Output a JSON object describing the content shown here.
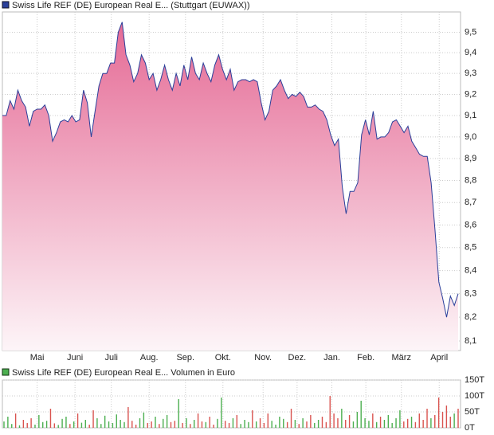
{
  "chart_data": [
    {
      "type": "area",
      "title": "Swiss Life REF (DE) European Real E... (Stuttgart (EUWAX))",
      "color": "#2a3f9a",
      "fill": "#e8739b",
      "log": true,
      "grid": true,
      "values": [
        9.1,
        9.1,
        9.17,
        9.13,
        9.22,
        9.17,
        9.14,
        9.05,
        9.12,
        9.13,
        9.13,
        9.15,
        9.1,
        8.98,
        9.02,
        9.07,
        9.08,
        9.07,
        9.1,
        9.07,
        9.08,
        9.22,
        9.16,
        9.0,
        9.12,
        9.24,
        9.3,
        9.3,
        9.35,
        9.35,
        9.5,
        9.55,
        9.39,
        9.34,
        9.26,
        9.3,
        9.39,
        9.35,
        9.27,
        9.3,
        9.22,
        9.27,
        9.34,
        9.27,
        9.22,
        9.3,
        9.24,
        9.34,
        9.27,
        9.38,
        9.3,
        9.27,
        9.35,
        9.3,
        9.26,
        9.34,
        9.39,
        9.32,
        9.27,
        9.32,
        9.22,
        9.26,
        9.27,
        9.27,
        9.26,
        9.27,
        9.26,
        9.16,
        9.08,
        9.12,
        9.22,
        9.24,
        9.27,
        9.22,
        9.18,
        9.2,
        9.19,
        9.21,
        9.19,
        9.14,
        9.14,
        9.15,
        9.13,
        9.12,
        9.08,
        9.01,
        8.96,
        8.99,
        8.77,
        8.65,
        8.75,
        8.75,
        8.79,
        9.01,
        9.08,
        9.01,
        9.12,
        8.99,
        9.0,
        9.0,
        9.02,
        9.07,
        9.08,
        9.05,
        9.02,
        9.05,
        8.98,
        8.95,
        8.92,
        8.91,
        8.91,
        8.79,
        8.58,
        8.35,
        8.28,
        8.2,
        8.29,
        8.25,
        8.3
      ],
      "ylim": [
        8.06,
        9.6
      ],
      "yticks": [
        {
          "value": 8.1,
          "label": "8,1"
        },
        {
          "value": 8.2,
          "label": "8,2"
        },
        {
          "value": 8.3,
          "label": "8,3"
        },
        {
          "value": 8.4,
          "label": "8,4"
        },
        {
          "value": 8.5,
          "label": "8,5"
        },
        {
          "value": 8.6,
          "label": "8,6"
        },
        {
          "value": 8.7,
          "label": "8,7"
        },
        {
          "value": 8.8,
          "label": "8,8"
        },
        {
          "value": 8.9,
          "label": "8,9"
        },
        {
          "value": 9.0,
          "label": "9,0"
        },
        {
          "value": 9.1,
          "label": "9,1"
        },
        {
          "value": 9.2,
          "label": "9,2"
        },
        {
          "value": 9.3,
          "label": "9,3"
        },
        {
          "value": 9.4,
          "label": "9,4"
        },
        {
          "value": 9.5,
          "label": "9,5"
        }
      ],
      "xticks": [
        {
          "value": 9,
          "label": "Mai"
        },
        {
          "value": 18.8,
          "label": "Juni"
        },
        {
          "value": 28.2,
          "label": "Juli"
        },
        {
          "value": 38,
          "label": "Aug."
        },
        {
          "value": 47.4,
          "label": "Sep."
        },
        {
          "value": 57.1,
          "label": "Okt."
        },
        {
          "value": 67.5,
          "label": "Nov."
        },
        {
          "value": 76.3,
          "label": "Dez."
        },
        {
          "value": 85.3,
          "label": "Jan."
        },
        {
          "value": 94.1,
          "label": "Feb."
        },
        {
          "value": 103.3,
          "label": "März"
        },
        {
          "value": 113.1,
          "label": "April"
        }
      ]
    },
    {
      "type": "bar",
      "title": "Swiss Life REF (DE) European Real E... Volumen in Euro",
      "color": "#4caf50",
      "grid": true,
      "values": [
        20000,
        35000,
        12000,
        45000,
        8000,
        25000,
        15000,
        30000,
        10000,
        40000,
        18000,
        22000,
        60000,
        14000,
        9000,
        28000,
        35000,
        12000,
        20000,
        45000,
        16000,
        25000,
        10000,
        55000,
        30000,
        12000,
        38000,
        20000,
        15000,
        42000,
        25000,
        18000,
        65000,
        22000,
        10000,
        30000,
        48000,
        15000,
        20000,
        35000,
        12000,
        28000,
        40000,
        18000,
        22000,
        90000,
        15000,
        30000,
        12000,
        25000,
        45000,
        20000,
        18000,
        35000,
        10000,
        28000,
        95000,
        22000,
        15000,
        30000,
        40000,
        12000,
        25000,
        18000,
        55000,
        20000,
        30000,
        15000,
        45000,
        22000,
        10000,
        35000,
        28000,
        18000,
        60000,
        25000,
        12000,
        30000,
        20000,
        40000,
        15000,
        25000,
        35000,
        18000,
        100000,
        45000,
        30000,
        60000,
        25000,
        40000,
        20000,
        50000,
        85000,
        30000,
        22000,
        45000,
        18000,
        35000,
        25000,
        40000,
        15000,
        30000,
        55000,
        20000,
        28000,
        35000,
        18000,
        45000,
        25000,
        60000,
        30000,
        40000,
        95000,
        50000,
        70000,
        35000,
        45000,
        60000
      ],
      "ylim": [
        0,
        150000
      ],
      "yticks": [
        {
          "value": 0,
          "label": "0T"
        },
        {
          "value": 50000,
          "label": "50T"
        },
        {
          "value": 100000,
          "label": "100T"
        },
        {
          "value": 150000,
          "label": "150T"
        }
      ]
    }
  ]
}
